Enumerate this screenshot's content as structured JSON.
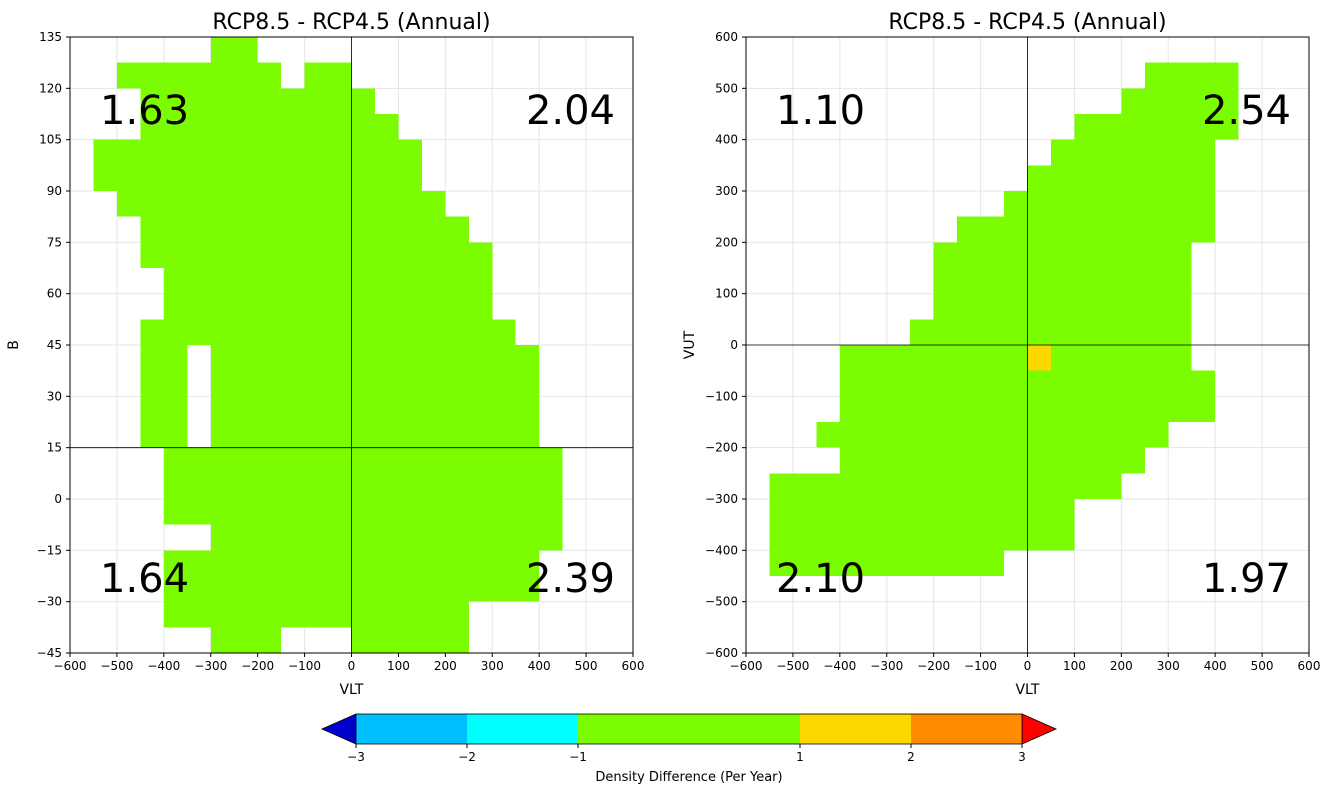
{
  "colors": {
    "background": "#ffffff",
    "axes_frame": "#000000",
    "grid": "#e6e6e6",
    "bins": [
      "#0000cd",
      "#00bfff",
      "#00ffff",
      "#7cfc00",
      "#ffd700",
      "#ff8c00",
      "#ff0000"
    ]
  },
  "chart_data": [
    {
      "type": "heatmap",
      "title": "RCP8.5 - RCP4.5 (Annual)",
      "xlabel": "VLT",
      "ylabel": "B",
      "xlim": [
        -600,
        600
      ],
      "ylim": [
        -45,
        135
      ],
      "xticks": [
        -600,
        -500,
        -400,
        -300,
        -200,
        -100,
        0,
        100,
        200,
        300,
        400,
        500,
        600
      ],
      "yticks": [
        -45,
        -30,
        -15,
        0,
        15,
        30,
        45,
        60,
        75,
        90,
        105,
        120,
        135
      ],
      "grid": true,
      "crosshair": {
        "x": 0,
        "y": 15
      },
      "cell_size": {
        "x": 50,
        "y": 7.5
      },
      "quadrant_labels": [
        {
          "quadrant": "upper-left",
          "text": "1.63"
        },
        {
          "quadrant": "upper-right",
          "text": "2.04"
        },
        {
          "quadrant": "lower-left",
          "text": "1.64"
        },
        {
          "quadrant": "lower-right",
          "text": "2.39"
        }
      ],
      "cells": [
        {
          "x0": -300,
          "x1": -200,
          "y0": 127.5,
          "y1": 135,
          "value": 0
        },
        {
          "x0": -500,
          "x1": -150,
          "y0": 120,
          "y1": 127.5,
          "value": 0
        },
        {
          "x0": -100,
          "x1": 0,
          "y0": 120,
          "y1": 127.5,
          "value": 0
        },
        {
          "x0": -450,
          "x1": 0,
          "y0": 112.5,
          "y1": 120,
          "value": 0
        },
        {
          "x0": 0,
          "x1": 50,
          "y0": 112.5,
          "y1": 120,
          "value": 0
        },
        {
          "x0": -450,
          "x1": 100,
          "y0": 105,
          "y1": 112.5,
          "value": 0
        },
        {
          "x0": -550,
          "x1": 150,
          "y0": 90,
          "y1": 105,
          "value": 0
        },
        {
          "x0": -500,
          "x1": 200,
          "y0": 82.5,
          "y1": 90,
          "value": 0
        },
        {
          "x0": -450,
          "x1": 250,
          "y0": 75,
          "y1": 82.5,
          "value": 0
        },
        {
          "x0": -450,
          "x1": 300,
          "y0": 67.5,
          "y1": 75,
          "value": 0
        },
        {
          "x0": -400,
          "x1": 300,
          "y0": 52.5,
          "y1": 67.5,
          "value": 0
        },
        {
          "x0": -450,
          "x1": 350,
          "y0": 45,
          "y1": 52.5,
          "value": 0
        },
        {
          "x0": -450,
          "x1": -350,
          "y0": 15,
          "y1": 45,
          "value": 0
        },
        {
          "x0": -300,
          "x1": 400,
          "y0": 15,
          "y1": 45,
          "value": 0
        },
        {
          "x0": -400,
          "x1": 450,
          "y0": -7.5,
          "y1": 15,
          "value": 0
        },
        {
          "x0": -300,
          "x1": 450,
          "y0": -15,
          "y1": -7.5,
          "value": 0
        },
        {
          "x0": -400,
          "x1": 400,
          "y0": -30,
          "y1": -15,
          "value": 0
        },
        {
          "x0": -400,
          "x1": 250,
          "y0": -37.5,
          "y1": -30,
          "value": 0
        },
        {
          "x0": -300,
          "x1": -150,
          "y0": -45,
          "y1": -37.5,
          "value": 0
        },
        {
          "x0": 0,
          "x1": 250,
          "y0": -45,
          "y1": -37.5,
          "value": 0
        }
      ]
    },
    {
      "type": "heatmap",
      "title": "RCP8.5 - RCP4.5 (Annual)",
      "xlabel": "VLT",
      "ylabel": "VUT",
      "xlim": [
        -600,
        600
      ],
      "ylim": [
        -600,
        600
      ],
      "xticks": [
        -600,
        -500,
        -400,
        -300,
        -200,
        -100,
        0,
        100,
        200,
        300,
        400,
        500,
        600
      ],
      "yticks": [
        -600,
        -500,
        -400,
        -300,
        -200,
        -100,
        0,
        100,
        200,
        300,
        400,
        500,
        600
      ],
      "grid": true,
      "crosshair": {
        "x": 0,
        "y": 0
      },
      "cell_size": {
        "x": 50,
        "y": 50
      },
      "quadrant_labels": [
        {
          "quadrant": "upper-left",
          "text": "1.10"
        },
        {
          "quadrant": "upper-right",
          "text": "2.54"
        },
        {
          "quadrant": "lower-left",
          "text": "2.10"
        },
        {
          "quadrant": "lower-right",
          "text": "1.97"
        }
      ],
      "cells": [
        {
          "x0": 250,
          "x1": 450,
          "y0": 500,
          "y1": 550,
          "value": 0
        },
        {
          "x0": 200,
          "x1": 450,
          "y0": 450,
          "y1": 500,
          "value": 0
        },
        {
          "x0": 100,
          "x1": 450,
          "y0": 400,
          "y1": 450,
          "value": 0
        },
        {
          "x0": 50,
          "x1": 400,
          "y0": 350,
          "y1": 400,
          "value": 0
        },
        {
          "x0": 0,
          "x1": 400,
          "y0": 300,
          "y1": 350,
          "value": 0
        },
        {
          "x0": -50,
          "x1": 400,
          "y0": 250,
          "y1": 300,
          "value": 0
        },
        {
          "x0": -150,
          "x1": 400,
          "y0": 200,
          "y1": 250,
          "value": 0
        },
        {
          "x0": -200,
          "x1": 350,
          "y0": 50,
          "y1": 200,
          "value": 0
        },
        {
          "x0": -250,
          "x1": 350,
          "y0": 0,
          "y1": 50,
          "value": 0
        },
        {
          "x0": -400,
          "x1": 0,
          "y0": -50,
          "y1": 0,
          "value": 0
        },
        {
          "x0": 0,
          "x1": 50,
          "y0": -50,
          "y1": 0,
          "value": 1.5
        },
        {
          "x0": 50,
          "x1": 350,
          "y0": -50,
          "y1": 0,
          "value": 0
        },
        {
          "x0": -400,
          "x1": 400,
          "y0": -150,
          "y1": -50,
          "value": 0
        },
        {
          "x0": -450,
          "x1": 300,
          "y0": -200,
          "y1": -150,
          "value": 0
        },
        {
          "x0": -400,
          "x1": 250,
          "y0": -250,
          "y1": -200,
          "value": 0
        },
        {
          "x0": -550,
          "x1": 200,
          "y0": -300,
          "y1": -250,
          "value": 0
        },
        {
          "x0": -550,
          "x1": 100,
          "y0": -400,
          "y1": -300,
          "value": 0
        },
        {
          "x0": -550,
          "x1": -50,
          "y0": -450,
          "y1": -400,
          "value": 0
        },
        {
          "x0": -150,
          "x1": -50,
          "y0": -450,
          "y1": -400,
          "value": 0
        },
        {
          "x0": -500,
          "x1": -200,
          "y0": -450,
          "y1": -400,
          "value": 0
        }
      ]
    }
  ],
  "colorbar": {
    "label": "Density Difference (Per Year)",
    "ticks": [
      -3,
      -2,
      -1,
      1,
      2,
      3
    ],
    "bounds": [
      -3,
      -2,
      -1,
      1,
      2,
      3
    ],
    "extend": "both"
  }
}
